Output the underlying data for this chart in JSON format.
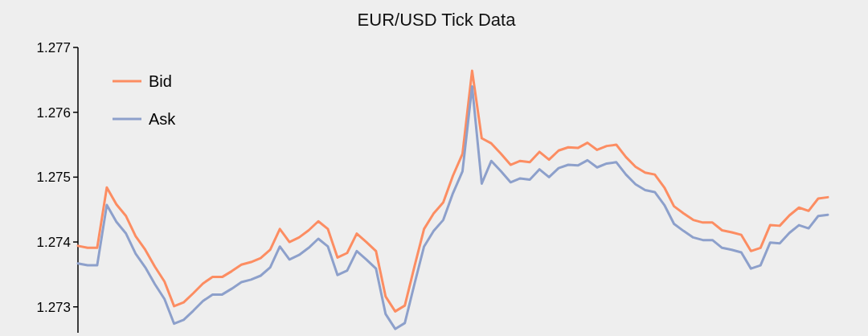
{
  "chart_data": {
    "type": "line",
    "title": "EUR/USD Tick Data",
    "categories": [
      null,
      null,
      null,
      null,
      null,
      null,
      null,
      null,
      null,
      null,
      null,
      null,
      null,
      null,
      null,
      null,
      null,
      null,
      null,
      null,
      null,
      null,
      null,
      null,
      null,
      null,
      null,
      null,
      null,
      null,
      null,
      null,
      null,
      null,
      null,
      null,
      null,
      null,
      null,
      null,
      null,
      null,
      null,
      null,
      null,
      null,
      null,
      null,
      null,
      null,
      null,
      null,
      null,
      null,
      null,
      null,
      null,
      null,
      null,
      null,
      null,
      null,
      null,
      null,
      null,
      null,
      null,
      null,
      null,
      null,
      null,
      null,
      null,
      null,
      null,
      null,
      null,
      null,
      null
    ],
    "series": [
      {
        "name": "Bid",
        "color": "#fc8d62",
        "values": [
          1.27394,
          1.27391,
          1.27391,
          1.27484,
          1.27458,
          1.2744,
          1.27409,
          1.27388,
          1.27362,
          1.27339,
          1.27301,
          1.27307,
          1.27321,
          1.27336,
          1.27346,
          1.27346,
          1.27355,
          1.27365,
          1.27369,
          1.27375,
          1.27388,
          1.2742,
          1.274,
          1.27407,
          1.27418,
          1.27432,
          1.2742,
          1.27376,
          1.27383,
          1.27413,
          1.274,
          1.27386,
          1.27316,
          1.27293,
          1.27302,
          1.27362,
          1.2742,
          1.27444,
          1.27461,
          1.27502,
          1.27536,
          1.27664,
          1.2756,
          1.27552,
          1.27536,
          1.27519,
          1.27525,
          1.27523,
          1.27539,
          1.27527,
          1.27541,
          1.27546,
          1.27545,
          1.27553,
          1.27542,
          1.27548,
          1.2755,
          1.27531,
          1.27516,
          1.27507,
          1.27504,
          1.27484,
          1.27455,
          1.27444,
          1.27434,
          1.2743,
          1.2743,
          1.27418,
          1.27415,
          1.27411,
          1.27386,
          1.27391,
          1.27426,
          1.27425,
          1.27441,
          1.27453,
          1.27448,
          1.27467,
          1.27469
        ]
      },
      {
        "name": "Ask",
        "color": "#8da0cb",
        "values": [
          1.27367,
          1.27364,
          1.27364,
          1.27457,
          1.27431,
          1.27413,
          1.27382,
          1.27361,
          1.27335,
          1.27312,
          1.27274,
          1.2728,
          1.27294,
          1.27309,
          1.27319,
          1.27319,
          1.27328,
          1.27338,
          1.27342,
          1.27348,
          1.27361,
          1.27393,
          1.27373,
          1.2738,
          1.27391,
          1.27405,
          1.27393,
          1.27349,
          1.27356,
          1.27386,
          1.27373,
          1.27359,
          1.27289,
          1.27266,
          1.27275,
          1.27335,
          1.27393,
          1.27417,
          1.27434,
          1.27475,
          1.27509,
          1.2764,
          1.2749,
          1.27525,
          1.27509,
          1.27492,
          1.27498,
          1.27496,
          1.27512,
          1.275,
          1.27514,
          1.27519,
          1.27518,
          1.27526,
          1.27515,
          1.27521,
          1.27523,
          1.27504,
          1.27489,
          1.2748,
          1.27477,
          1.27457,
          1.27428,
          1.27417,
          1.27407,
          1.27403,
          1.27403,
          1.27391,
          1.27388,
          1.27384,
          1.27359,
          1.27364,
          1.27399,
          1.27398,
          1.27414,
          1.27426,
          1.27421,
          1.2744,
          1.27442
        ]
      }
    ],
    "ylim": [
      1.2726,
      1.277
    ],
    "yticks": [
      1.273,
      1.274,
      1.275,
      1.276,
      1.277
    ],
    "tick_labels": "y",
    "legend": "top left",
    "grid": false
  }
}
